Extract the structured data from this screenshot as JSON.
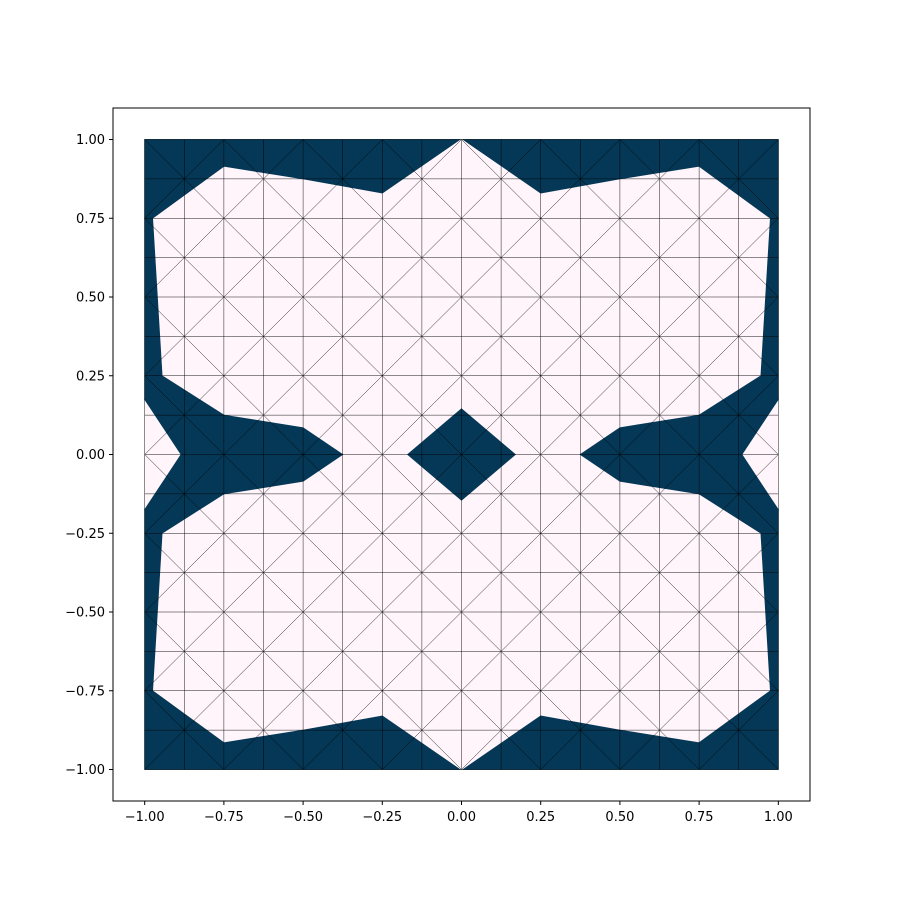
{
  "chart_data": {
    "type": "triangulation",
    "title": "",
    "xlabel": "",
    "ylabel": "",
    "xlim": [
      -1.1,
      1.1
    ],
    "ylim": [
      -1.1,
      1.1
    ],
    "grid": false,
    "x_ticks": [
      -1.0,
      -0.75,
      -0.5,
      -0.25,
      0.0,
      0.25,
      0.5,
      0.75,
      1.0
    ],
    "y_ticks": [
      -1.0,
      -0.75,
      -0.5,
      -0.25,
      0.0,
      0.25,
      0.5,
      0.75,
      1.0
    ],
    "x_tick_labels": [
      "−1.00",
      "−0.75",
      "−0.50",
      "−0.25",
      "0.00",
      "0.25",
      "0.50",
      "0.75",
      "1.00"
    ],
    "y_tick_labels": [
      "−1.00",
      "−0.75",
      "−0.50",
      "−0.25",
      "0.00",
      "0.25",
      "0.50",
      "0.75",
      "1.00"
    ],
    "mesh": {
      "x_range": [
        -1.0,
        1.0
      ],
      "y_range": [
        -1.0,
        1.0
      ],
      "cell_size": 0.125,
      "edge_color": "#000000"
    },
    "colors": {
      "masked_fill": "#053856",
      "unmasked_fill": "#fff5fb"
    },
    "masked_regions": [
      {
        "name": "top-band",
        "polygon": [
          [
            -1.0,
            1.0
          ],
          [
            -0.005,
            1.0
          ],
          [
            -0.25,
            0.83
          ],
          [
            -0.5,
            0.875
          ],
          [
            -0.75,
            0.915
          ],
          [
            -0.975,
            0.75
          ],
          [
            -1.0,
            0.75
          ]
        ]
      },
      {
        "name": "top-band-right",
        "polygon": [
          [
            0.005,
            1.0
          ],
          [
            1.0,
            1.0
          ],
          [
            1.0,
            0.75
          ],
          [
            0.975,
            0.75
          ],
          [
            0.75,
            0.915
          ],
          [
            0.5,
            0.875
          ],
          [
            0.25,
            0.83
          ]
        ]
      },
      {
        "name": "bottom-band",
        "polygon": [
          [
            -1.0,
            -1.0
          ],
          [
            -0.005,
            -1.0
          ],
          [
            -0.25,
            -0.83
          ],
          [
            -0.5,
            -0.875
          ],
          [
            -0.75,
            -0.915
          ],
          [
            -0.975,
            -0.75
          ],
          [
            -1.0,
            -0.75
          ]
        ]
      },
      {
        "name": "bottom-band-right",
        "polygon": [
          [
            0.005,
            -1.0
          ],
          [
            1.0,
            -1.0
          ],
          [
            1.0,
            -0.75
          ],
          [
            0.975,
            -0.75
          ],
          [
            0.75,
            -0.915
          ],
          [
            0.5,
            -0.875
          ],
          [
            0.25,
            -0.83
          ]
        ]
      },
      {
        "name": "left-upper-strip",
        "polygon": [
          [
            -1.0,
            0.75
          ],
          [
            -0.975,
            0.75
          ],
          [
            -0.945,
            0.25
          ],
          [
            -1.0,
            0.175
          ]
        ]
      },
      {
        "name": "left-lower-strip",
        "polygon": [
          [
            -1.0,
            -0.75
          ],
          [
            -0.975,
            -0.75
          ],
          [
            -0.945,
            -0.25
          ],
          [
            -1.0,
            -0.175
          ]
        ]
      },
      {
        "name": "right-upper-strip",
        "polygon": [
          [
            1.0,
            0.75
          ],
          [
            0.975,
            0.75
          ],
          [
            0.945,
            0.25
          ],
          [
            1.0,
            0.175
          ]
        ]
      },
      {
        "name": "right-lower-strip",
        "polygon": [
          [
            1.0,
            -0.75
          ],
          [
            0.975,
            -0.75
          ],
          [
            0.945,
            -0.25
          ],
          [
            1.0,
            -0.175
          ]
        ]
      },
      {
        "name": "left-wedge",
        "polygon": [
          [
            -1.0,
            0.175
          ],
          [
            -0.945,
            0.25
          ],
          [
            -0.75,
            0.125
          ],
          [
            -0.5,
            0.085
          ],
          [
            -0.375,
            0.0
          ],
          [
            -0.5,
            -0.085
          ],
          [
            -0.75,
            -0.125
          ],
          [
            -0.945,
            -0.25
          ],
          [
            -1.0,
            -0.175
          ],
          [
            -0.885,
            0.0
          ]
        ]
      },
      {
        "name": "right-wedge",
        "polygon": [
          [
            1.0,
            0.175
          ],
          [
            0.945,
            0.25
          ],
          [
            0.75,
            0.125
          ],
          [
            0.5,
            0.085
          ],
          [
            0.375,
            0.0
          ],
          [
            0.5,
            -0.085
          ],
          [
            0.75,
            -0.125
          ],
          [
            0.945,
            -0.25
          ],
          [
            1.0,
            -0.175
          ],
          [
            0.885,
            0.0
          ]
        ]
      },
      {
        "name": "center-diamond",
        "polygon": [
          [
            0.0,
            0.145
          ],
          [
            0.17,
            0.0
          ],
          [
            0.0,
            -0.145
          ],
          [
            -0.17,
            0.0
          ]
        ]
      }
    ]
  }
}
